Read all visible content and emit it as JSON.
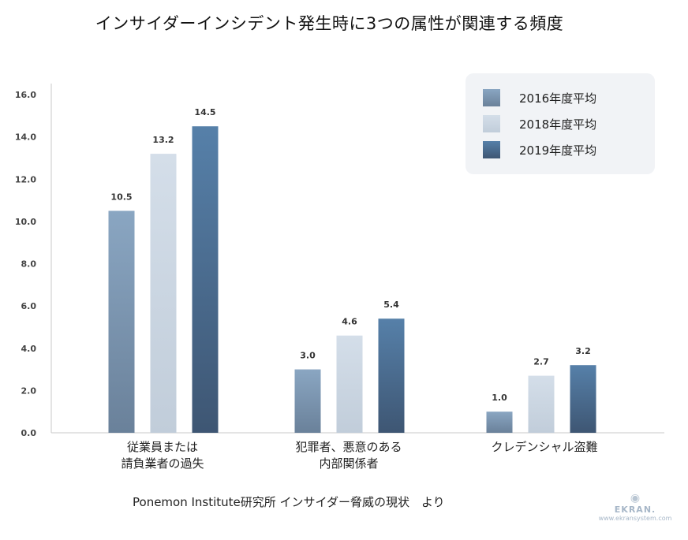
{
  "title": "インサイダーインシデント発生時に3つの属性が関連する頻度",
  "source": "Ponemon Institute研究所 インサイダー脅威の現状　より",
  "brand": {
    "name": "EKRAN.",
    "url": "www.ekransystem.com",
    "logo_icon": "eye-icon"
  },
  "colors": {
    "s2016_top": "#8aa6c2",
    "s2016_bottom": "#6a819a",
    "s2018_top": "#d4dee9",
    "s2018_bottom": "#c1cdda",
    "s2019_top": "#5680a9",
    "s2019_bottom": "#3e5673",
    "axis": "#c8c8c8",
    "legend_bg": "#f1f3f6"
  },
  "chart_data": {
    "type": "bar",
    "categories": [
      [
        "従業員または",
        "請負業者の過失"
      ],
      [
        "犯罪者、悪意のある",
        "内部関係者"
      ],
      [
        "クレデンシャル盗難"
      ]
    ],
    "series": [
      {
        "name": "2016年度平均",
        "values": [
          10.5,
          3.0,
          1.0
        ],
        "labels": [
          "10.5",
          "3.0",
          "1.0"
        ]
      },
      {
        "name": "2018年度平均",
        "values": [
          13.2,
          4.6,
          2.7
        ],
        "labels": [
          "13.2",
          "4.6",
          "2.7"
        ]
      },
      {
        "name": "2019年度平均",
        "values": [
          14.5,
          5.4,
          3.2
        ],
        "labels": [
          "14.5",
          "5.4",
          "3.2"
        ]
      }
    ],
    "yticks": [
      "0.0",
      "2.0",
      "4.0",
      "6.0",
      "8.0",
      "10.0",
      "12.0",
      "14.0",
      "16.0"
    ],
    "ylim": [
      0,
      16
    ],
    "grid": false,
    "legend_position": "top-right"
  }
}
